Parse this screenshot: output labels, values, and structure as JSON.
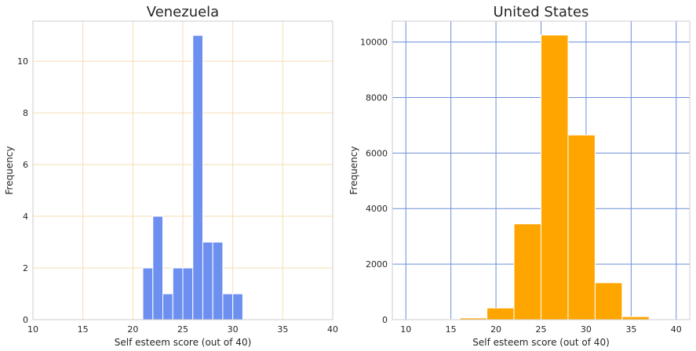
{
  "chart_data": [
    {
      "type": "bar",
      "title": "Venezuela",
      "xlabel": "Self esteem score (out of 40)",
      "ylabel": "Frequency",
      "xlim": [
        10,
        40
      ],
      "ylim": [
        0,
        11.55
      ],
      "xticks": [
        "10",
        "15",
        "20",
        "25",
        "30",
        "35",
        "40"
      ],
      "yticks": [
        "0",
        "2",
        "4",
        "6",
        "8",
        "10"
      ],
      "bin_width": 1,
      "bins": [
        {
          "x0": 21,
          "x1": 22,
          "value": 2
        },
        {
          "x0": 22,
          "x1": 23,
          "value": 4
        },
        {
          "x0": 23,
          "x1": 24,
          "value": 1
        },
        {
          "x0": 24,
          "x1": 25,
          "value": 2
        },
        {
          "x0": 25,
          "x1": 26,
          "value": 2
        },
        {
          "x0": 26,
          "x1": 27,
          "value": 11
        },
        {
          "x0": 27,
          "x1": 28,
          "value": 3
        },
        {
          "x0": 28,
          "x1": 29,
          "value": 3
        },
        {
          "x0": 29,
          "x1": 30,
          "value": 1
        },
        {
          "x0": 30,
          "x1": 31,
          "value": 1
        }
      ],
      "bar_color": "#6d8ff0",
      "grid": true,
      "grid_color": "#f5deb3"
    },
    {
      "type": "bar",
      "title": "United States",
      "xlabel": "Self esteem score (out of 40)",
      "ylabel": "Frequency",
      "xlim": [
        8.5,
        41.5
      ],
      "ylim": [
        0,
        10750
      ],
      "xticks": [
        "10",
        "15",
        "20",
        "25",
        "30",
        "35",
        "40"
      ],
      "yticks": [
        "0",
        "2000",
        "4000",
        "6000",
        "8000",
        "10000"
      ],
      "bin_width": 3,
      "bins": [
        {
          "x0": 10,
          "x1": 13,
          "value": 0
        },
        {
          "x0": 13,
          "x1": 16,
          "value": 10
        },
        {
          "x0": 16,
          "x1": 19,
          "value": 60
        },
        {
          "x0": 19,
          "x1": 22,
          "value": 420
        },
        {
          "x0": 22,
          "x1": 25,
          "value": 3450
        },
        {
          "x0": 25,
          "x1": 28,
          "value": 10250
        },
        {
          "x0": 28,
          "x1": 31,
          "value": 6650
        },
        {
          "x0": 31,
          "x1": 34,
          "value": 1330
        },
        {
          "x0": 34,
          "x1": 37,
          "value": 110
        },
        {
          "x0": 37,
          "x1": 40,
          "value": 0
        }
      ],
      "bar_color": "#ffa500",
      "grid": true,
      "grid_color": "#6d8fd8"
    }
  ]
}
